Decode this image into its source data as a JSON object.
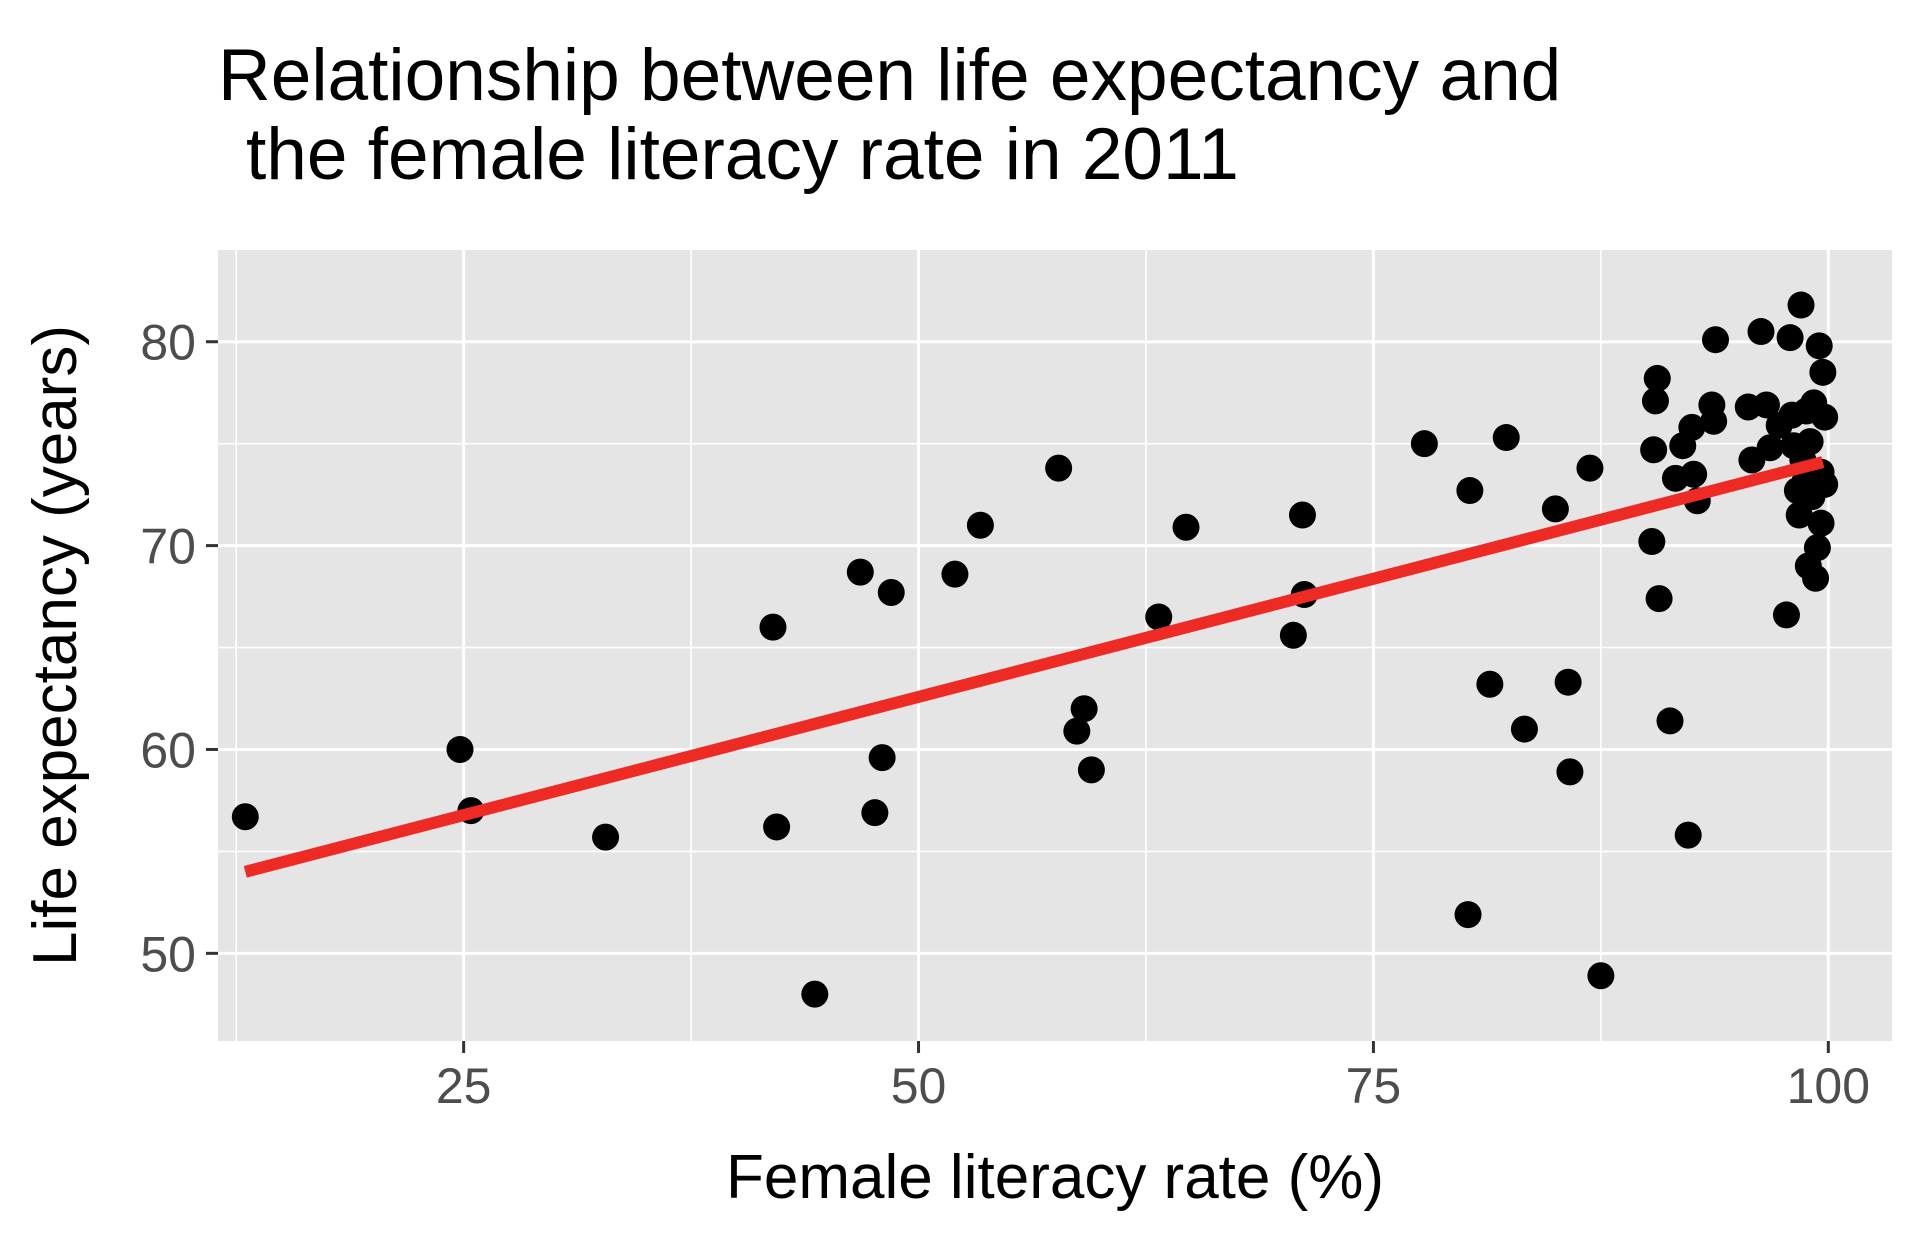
{
  "chart_data": {
    "type": "scatter",
    "title_lines": [
      "Relationship between life expectancy and",
      "the female literacy rate in 2011"
    ],
    "xlabel": "Female literacy rate (%)",
    "ylabel": "Life expectancy (years)",
    "xlim": [
      11.5,
      103.5
    ],
    "ylim": [
      45.7,
      84.5
    ],
    "x_ticks": [
      25,
      50,
      75,
      100
    ],
    "x_tick_labels": [
      "25",
      "50",
      "75",
      "100"
    ],
    "y_ticks": [
      50,
      60,
      70,
      80
    ],
    "y_tick_labels": [
      "50",
      "60",
      "70",
      "80"
    ],
    "grid": true,
    "legend": "none",
    "colors": {
      "panel": "#e5e5e5",
      "grid": "#ffffff",
      "points": "#000000",
      "trend": "#ee2a24",
      "text": "#000000",
      "tick_text": "#4d4d4d"
    },
    "trend_line": {
      "x": [
        13.0,
        99.7
      ],
      "y": [
        54.0,
        74.1
      ]
    },
    "points": [
      {
        "x": 13.0,
        "y": 56.7
      },
      {
        "x": 24.8,
        "y": 60.0
      },
      {
        "x": 25.4,
        "y": 57.0
      },
      {
        "x": 32.8,
        "y": 55.7
      },
      {
        "x": 42.0,
        "y": 66.0
      },
      {
        "x": 42.2,
        "y": 56.2
      },
      {
        "x": 44.3,
        "y": 48.0
      },
      {
        "x": 46.8,
        "y": 68.7
      },
      {
        "x": 47.6,
        "y": 56.9
      },
      {
        "x": 48.0,
        "y": 59.6
      },
      {
        "x": 48.5,
        "y": 67.7
      },
      {
        "x": 52.0,
        "y": 68.6
      },
      {
        "x": 53.4,
        "y": 71.0
      },
      {
        "x": 57.7,
        "y": 73.8
      },
      {
        "x": 58.7,
        "y": 60.9
      },
      {
        "x": 59.1,
        "y": 62.0
      },
      {
        "x": 59.5,
        "y": 59.0
      },
      {
        "x": 63.2,
        "y": 66.5
      },
      {
        "x": 64.7,
        "y": 70.9
      },
      {
        "x": 70.6,
        "y": 65.6
      },
      {
        "x": 71.1,
        "y": 71.5
      },
      {
        "x": 71.2,
        "y": 67.6
      },
      {
        "x": 77.8,
        "y": 75.0
      },
      {
        "x": 80.2,
        "y": 51.9
      },
      {
        "x": 80.3,
        "y": 72.7
      },
      {
        "x": 81.4,
        "y": 63.2
      },
      {
        "x": 82.3,
        "y": 75.3
      },
      {
        "x": 83.3,
        "y": 61.0
      },
      {
        "x": 85.0,
        "y": 71.8
      },
      {
        "x": 85.7,
        "y": 63.3
      },
      {
        "x": 85.8,
        "y": 58.9
      },
      {
        "x": 86.9,
        "y": 73.8
      },
      {
        "x": 87.5,
        "y": 48.9
      },
      {
        "x": 90.3,
        "y": 70.2
      },
      {
        "x": 90.4,
        "y": 74.7
      },
      {
        "x": 90.5,
        "y": 77.1
      },
      {
        "x": 90.6,
        "y": 78.2
      },
      {
        "x": 90.7,
        "y": 67.4
      },
      {
        "x": 91.3,
        "y": 61.4
      },
      {
        "x": 91.6,
        "y": 73.3
      },
      {
        "x": 92.0,
        "y": 74.9
      },
      {
        "x": 92.3,
        "y": 55.8
      },
      {
        "x": 92.5,
        "y": 75.8
      },
      {
        "x": 92.6,
        "y": 73.5
      },
      {
        "x": 92.8,
        "y": 72.2
      },
      {
        "x": 93.6,
        "y": 76.9
      },
      {
        "x": 93.7,
        "y": 76.1
      },
      {
        "x": 93.8,
        "y": 80.1
      },
      {
        "x": 95.6,
        "y": 76.8
      },
      {
        "x": 95.8,
        "y": 74.2
      },
      {
        "x": 96.3,
        "y": 80.5
      },
      {
        "x": 96.6,
        "y": 76.9
      },
      {
        "x": 96.8,
        "y": 74.8
      },
      {
        "x": 97.3,
        "y": 75.9
      },
      {
        "x": 97.7,
        "y": 66.6
      },
      {
        "x": 97.9,
        "y": 80.2
      },
      {
        "x": 98.0,
        "y": 76.4
      },
      {
        "x": 98.1,
        "y": 74.9
      },
      {
        "x": 98.3,
        "y": 72.7
      },
      {
        "x": 98.4,
        "y": 71.5
      },
      {
        "x": 98.5,
        "y": 81.8
      },
      {
        "x": 98.6,
        "y": 74.2
      },
      {
        "x": 98.7,
        "y": 73.1
      },
      {
        "x": 98.8,
        "y": 76.6
      },
      {
        "x": 98.9,
        "y": 69.0
      },
      {
        "x": 99.0,
        "y": 75.1
      },
      {
        "x": 99.1,
        "y": 72.4
      },
      {
        "x": 99.2,
        "y": 77.0
      },
      {
        "x": 99.3,
        "y": 68.4
      },
      {
        "x": 99.4,
        "y": 69.9
      },
      {
        "x": 99.5,
        "y": 79.8
      },
      {
        "x": 99.6,
        "y": 73.6
      },
      {
        "x": 99.6,
        "y": 71.1
      },
      {
        "x": 99.7,
        "y": 78.5
      },
      {
        "x": 99.8,
        "y": 76.3
      },
      {
        "x": 99.8,
        "y": 73.0
      }
    ]
  }
}
